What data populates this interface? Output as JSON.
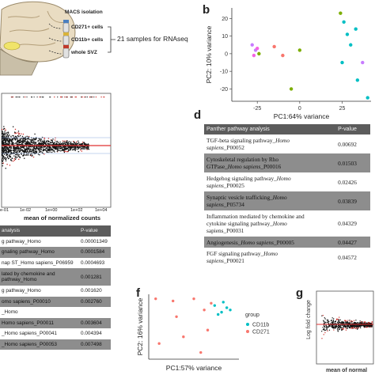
{
  "panel_a": {
    "macs_label": "MACS isolation",
    "pop1": "CD271+ cells",
    "pop2": "CD11b+ cells",
    "pop3": "whole SVZ",
    "samples_label": "21 samples for RNAseq"
  },
  "panel_b_letter": "b",
  "panel_d_letter": "d",
  "panel_f_letter": "f",
  "panel_g_letter": "g",
  "ma_plot_left": {
    "xlabel": "mean of normalized counts",
    "xticks": [
      "e-01",
      "1e-02",
      "1e+00",
      "1e+02",
      "1e+04"
    ]
  },
  "pathway_table_left": {
    "col1": "analysis",
    "col2": "P-value",
    "rows": [
      {
        "term": "g pathway_Homo",
        "p": "0.00001349"
      },
      {
        "term": "gnaling pathway_Homo",
        "p": "0.0001584"
      },
      {
        "term": "nap ST_Homo sapiens_P06959",
        "p": "0.0004693"
      },
      {
        "term": "lated by chemokine and",
        "term2": "pathway_Homo",
        "p": "0.001281"
      },
      {
        "term": "g pathway_Homo",
        "p": "0.001620"
      },
      {
        "term": "omo sapiens_P00010",
        "p": "0.002760"
      },
      {
        "term": "_Homo",
        "p": ""
      },
      {
        "term": "Homo sapiens_P00011",
        "p": "0.003604"
      },
      {
        "term": "_Homo sapiens_P00041",
        "p": "0.004394"
      },
      {
        "term": "_Homo sapiens_P00053",
        "p": "0.007498"
      }
    ]
  },
  "chart_data": [
    {
      "type": "scatter",
      "panel": "b",
      "xlabel": "PC1:64% variance",
      "ylabel": "PC2: 10% variance",
      "xticks": [
        -25,
        0,
        25
      ],
      "yticks": [
        20,
        10,
        0,
        -10,
        -20
      ],
      "xlim": [
        -40,
        42
      ],
      "ylim": [
        -27,
        26
      ],
      "points": [
        {
          "x": -28,
          "y": 5,
          "c": "#c77cff"
        },
        {
          "x": -26,
          "y": 2,
          "c": "#c77cff"
        },
        {
          "x": -25,
          "y": 3,
          "c": "#f564e3"
        },
        {
          "x": -24,
          "y": 0,
          "c": "#7cae00"
        },
        {
          "x": -27,
          "y": -1,
          "c": "#f564e3"
        },
        {
          "x": -15,
          "y": 4,
          "c": "#f8766d"
        },
        {
          "x": -10,
          "y": -1,
          "c": "#f8766d"
        },
        {
          "x": 0,
          "y": 2,
          "c": "#7cae00"
        },
        {
          "x": -5,
          "y": -20,
          "c": "#7cae00"
        },
        {
          "x": 24,
          "y": 23,
          "c": "#7cae00"
        },
        {
          "x": 26,
          "y": 18,
          "c": "#00bfc4"
        },
        {
          "x": 28,
          "y": 11,
          "c": "#00bfc4"
        },
        {
          "x": 30,
          "y": 5,
          "c": "#00bfc4"
        },
        {
          "x": 33,
          "y": 14,
          "c": "#00bfc4"
        },
        {
          "x": 25,
          "y": -5,
          "c": "#00bfc4"
        },
        {
          "x": 34,
          "y": -15,
          "c": "#00bfc4"
        },
        {
          "x": 40,
          "y": -25,
          "c": "#00bfc4"
        },
        {
          "x": 37,
          "y": -5,
          "c": "#c77cff"
        }
      ]
    },
    {
      "type": "scatter",
      "panel": "f",
      "xlabel": "PC1:57% variance",
      "ylabel": "PC2: 16% variance",
      "legend_title": "group",
      "series": [
        {
          "name": "CD11b",
          "color": "#00bfc4",
          "points": [
            [
              1.5,
              1.8
            ],
            [
              1.7,
              1.5
            ],
            [
              1.85,
              1.7
            ],
            [
              1.75,
              1.95
            ],
            [
              1.95,
              1.6
            ],
            [
              1.6,
              1.4
            ]
          ]
        },
        {
          "name": "CD271",
          "color": "#f8766d",
          "points": [
            [
              -0.2,
              2.1
            ],
            [
              0.3,
              2.0
            ],
            [
              0.9,
              2.1
            ],
            [
              1.2,
              1.6
            ],
            [
              1.4,
              1.9
            ],
            [
              0.4,
              1.3
            ],
            [
              0.6,
              0.4
            ],
            [
              1.3,
              0.7
            ],
            [
              1.1,
              -0.3
            ],
            [
              -0.1,
              0.1
            ]
          ]
        }
      ],
      "xlim": [
        -0.4,
        2.2
      ],
      "ylim": [
        -0.6,
        2.3
      ]
    }
  ],
  "panel_d_table": {
    "col1": "Panther pathway analysis",
    "col2": "P-value",
    "rows": [
      {
        "line1": "TGF-beta signaling pathway_",
        "italic": "Homo",
        "line2_italic": "sapiens",
        "line2": "_P00052",
        "p": "0.00692"
      },
      {
        "line1": "Cytoskeletal regulation by Rho",
        "line2": "GTPase_",
        "line2_italic": "Homo sapiens",
        "line2_tail": "_P00016",
        "p": "0.01503"
      },
      {
        "line1": "Hedgehog signaling pathway_",
        "italic": "Homo",
        "line2_italic": "sapiens",
        "line2": "_P00025",
        "p": "0.02426"
      },
      {
        "line1": "Synaptic vesicle trafficking_",
        "italic": "Homo",
        "line2_italic": "sapiens",
        "line2": "_P05734",
        "p": "0.03839"
      },
      {
        "line1": "Inflammation mediated by chemokine and",
        "line2": "cytokine signaling pathway_",
        "line2_italic": "Homo",
        "line3": "sapiens_P00031",
        "p": "0.04329"
      },
      {
        "line1": "Angiogenesis_",
        "italic": "Homo sapiens",
        "tail": "_P00005",
        "p": "0.04427"
      },
      {
        "line1": "FGF signaling pathway_",
        "italic": "Homo",
        "line2_italic": "sapiens",
        "line2": "_P00021",
        "p": "0.04572"
      }
    ]
  },
  "panel_g": {
    "ylabel": "Log fold change",
    "xlabel": "mean of normal"
  }
}
